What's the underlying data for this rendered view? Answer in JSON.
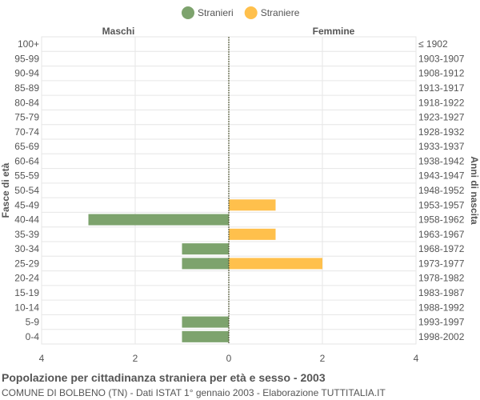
{
  "chart_data": {
    "type": "bar",
    "orientation": "horizontal",
    "title": "Popolazione per cittadinanza straniera per età e sesso - 2003",
    "subtitle": "COMUNE DI BOLBENO (TN) - Dati ISTAT 1° gennaio 2003 - Elaborazione TUTTITALIA.IT",
    "left_header": "Maschi",
    "right_header": "Femmine",
    "ylabel_left": "Fasce di età",
    "ylabel_right": "Anni di nascita",
    "categories": [
      "100+",
      "95-99",
      "90-94",
      "85-89",
      "80-84",
      "75-79",
      "70-74",
      "65-69",
      "60-64",
      "55-59",
      "50-54",
      "45-49",
      "40-44",
      "35-39",
      "30-34",
      "25-29",
      "20-24",
      "15-19",
      "10-14",
      "5-9",
      "0-4"
    ],
    "birth_years": [
      "≤ 1902",
      "1903-1907",
      "1908-1912",
      "1913-1917",
      "1918-1922",
      "1923-1927",
      "1928-1932",
      "1933-1937",
      "1938-1942",
      "1943-1947",
      "1948-1952",
      "1953-1957",
      "1958-1962",
      "1963-1967",
      "1968-1972",
      "1973-1977",
      "1978-1982",
      "1983-1987",
      "1988-1992",
      "1993-1997",
      "1998-2002"
    ],
    "series": [
      {
        "name": "Stranieri",
        "color": "#7da36d",
        "values": [
          0,
          0,
          0,
          0,
          0,
          0,
          0,
          0,
          0,
          0,
          0,
          0,
          3,
          0,
          1,
          1,
          0,
          0,
          0,
          1,
          1
        ]
      },
      {
        "name": "Straniere",
        "color": "#ffc04c",
        "values": [
          0,
          0,
          0,
          0,
          0,
          0,
          0,
          0,
          0,
          0,
          0,
          1,
          0,
          1,
          0,
          2,
          0,
          0,
          0,
          0,
          0
        ]
      }
    ],
    "xlim": [
      -4,
      4
    ],
    "xticks": [
      -4,
      -2,
      0,
      2,
      4
    ],
    "xtick_labels": [
      "4",
      "2",
      "0",
      "2",
      "4"
    ],
    "grid": true,
    "legend_position": "top"
  }
}
